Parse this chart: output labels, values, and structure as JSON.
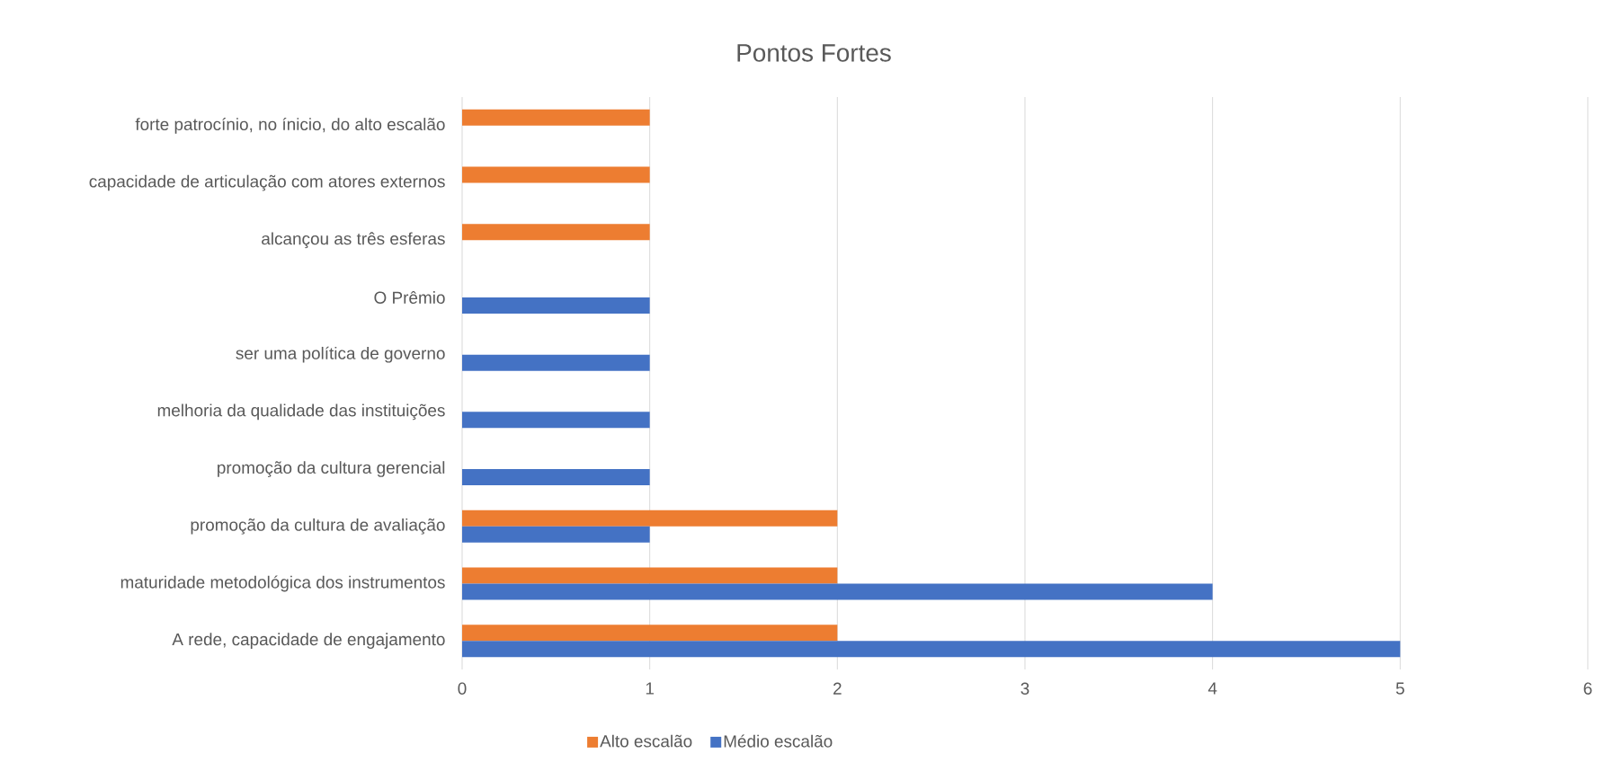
{
  "chart_data": {
    "type": "bar",
    "orientation": "horizontal",
    "title": "Pontos Fortes",
    "categories": [
      "forte patrocínio, no ínicio, do alto escalão",
      "capacidade de articulação com atores externos",
      "alcançou as três esferas",
      "O Prêmio",
      "ser uma política de governo",
      "melhoria da qualidade das instituições",
      "promoção da cultura gerencial",
      "promoção da cultura de avaliação",
      "maturidade metodológica dos instrumentos",
      "A rede, capacidade de engajamento"
    ],
    "series": [
      {
        "name": "Alto escalão",
        "color": "#ed7d31",
        "values": [
          1,
          1,
          1,
          null,
          null,
          null,
          null,
          2,
          2,
          2
        ]
      },
      {
        "name": "Médio escalão",
        "color": "#4472c4",
        "values": [
          null,
          null,
          null,
          1,
          1,
          1,
          1,
          1,
          4,
          5
        ]
      }
    ],
    "xlim": [
      0,
      6
    ],
    "xticks": [
      0,
      1,
      2,
      3,
      4,
      5,
      6
    ],
    "grid": "x",
    "legend": "bottom"
  }
}
